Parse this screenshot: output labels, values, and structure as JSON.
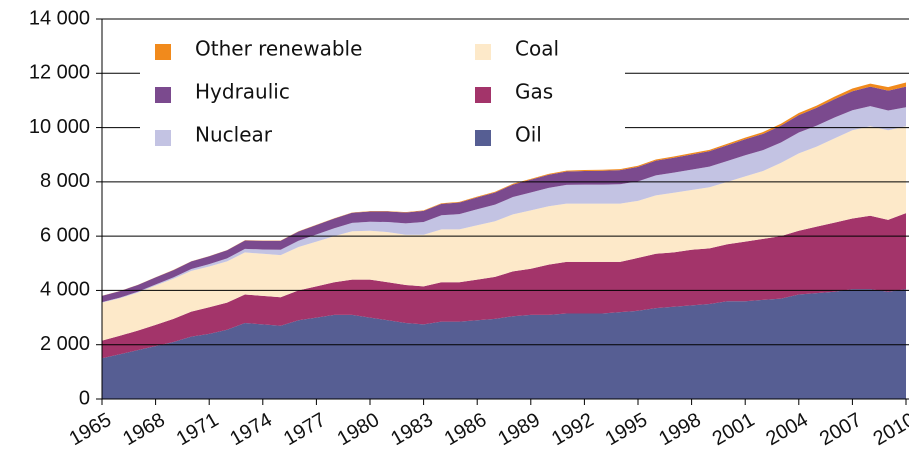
{
  "chart_data": {
    "type": "stacked_area",
    "x": [
      1965,
      1966,
      1967,
      1968,
      1969,
      1970,
      1971,
      1972,
      1973,
      1974,
      1975,
      1976,
      1977,
      1978,
      1979,
      1980,
      1981,
      1982,
      1983,
      1984,
      1985,
      1986,
      1987,
      1988,
      1989,
      1990,
      1991,
      1992,
      1993,
      1994,
      1995,
      1996,
      1997,
      1998,
      1999,
      2000,
      2001,
      2002,
      2003,
      2004,
      2005,
      2006,
      2007,
      2008,
      2009,
      2010
    ],
    "series": [
      {
        "name": "Oil",
        "color": "#565e93",
        "values": [
          1500,
          1650,
          1800,
          1950,
          2100,
          2300,
          2400,
          2550,
          2800,
          2750,
          2700,
          2900,
          3000,
          3100,
          3100,
          3000,
          2900,
          2800,
          2750,
          2850,
          2850,
          2900,
          2950,
          3050,
          3100,
          3100,
          3150,
          3150,
          3150,
          3200,
          3250,
          3350,
          3400,
          3450,
          3500,
          3600,
          3600,
          3650,
          3700,
          3850,
          3900,
          3950,
          4050,
          4050,
          3950,
          4050
        ]
      },
      {
        "name": "Gas",
        "color": "#a3346a",
        "values": [
          650,
          680,
          720,
          780,
          850,
          920,
          980,
          1000,
          1050,
          1050,
          1050,
          1100,
          1150,
          1200,
          1300,
          1400,
          1400,
          1400,
          1400,
          1450,
          1450,
          1500,
          1550,
          1650,
          1700,
          1850,
          1900,
          1900,
          1900,
          1850,
          1950,
          2000,
          2000,
          2050,
          2050,
          2100,
          2200,
          2250,
          2300,
          2350,
          2450,
          2550,
          2600,
          2700,
          2650,
          2800
        ]
      },
      {
        "name": "Coal",
        "color": "#fde9c9",
        "values": [
          1400,
          1380,
          1400,
          1450,
          1480,
          1500,
          1500,
          1520,
          1550,
          1550,
          1550,
          1600,
          1650,
          1700,
          1780,
          1800,
          1850,
          1850,
          1900,
          1950,
          1950,
          2000,
          2050,
          2100,
          2150,
          2150,
          2150,
          2150,
          2150,
          2150,
          2100,
          2150,
          2200,
          2200,
          2250,
          2300,
          2400,
          2500,
          2700,
          2850,
          2950,
          3100,
          3250,
          3300,
          3300,
          3200
        ]
      },
      {
        "name": "Nuclear",
        "color": "#c3c3e3",
        "values": [
          20,
          25,
          30,
          40,
          50,
          70,
          90,
          110,
          130,
          160,
          200,
          230,
          260,
          290,
          310,
          330,
          370,
          420,
          470,
          520,
          560,
          590,
          610,
          640,
          660,
          680,
          690,
          700,
          700,
          710,
          720,
          740,
          740,
          750,
          760,
          770,
          780,
          770,
          750,
          770,
          770,
          770,
          740,
          740,
          730,
          700
        ]
      },
      {
        "name": "Hydraulic",
        "color": "#7b4a8e",
        "values": [
          230,
          240,
          250,
          260,
          270,
          280,
          290,
          300,
          310,
          320,
          330,
          340,
          350,
          360,
          370,
          380,
          390,
          400,
          410,
          420,
          430,
          440,
          450,
          460,
          470,
          480,
          490,
          500,
          510,
          520,
          530,
          540,
          550,
          560,
          570,
          580,
          590,
          600,
          620,
          640,
          660,
          680,
          700,
          720,
          730,
          760
        ]
      },
      {
        "name": "Other renewable",
        "color": "#f18a1c",
        "values": [
          5,
          5,
          5,
          5,
          5,
          6,
          6,
          6,
          7,
          8,
          8,
          9,
          10,
          10,
          11,
          12,
          14,
          16,
          18,
          20,
          22,
          24,
          26,
          28,
          30,
          32,
          34,
          36,
          38,
          40,
          42,
          44,
          46,
          48,
          50,
          55,
          60,
          65,
          70,
          75,
          80,
          90,
          100,
          110,
          130,
          150
        ]
      }
    ],
    "xlim": [
      1965,
      2010
    ],
    "xticks": [
      1965,
      1968,
      1971,
      1974,
      1977,
      1980,
      1983,
      1986,
      1989,
      1992,
      1995,
      1998,
      2001,
      2004,
      2007,
      2010
    ],
    "ylim": [
      0,
      14000
    ],
    "yticks": [
      0,
      {
        "value": 2000,
        "label": "2 000"
      },
      {
        "value": 4000,
        "label": "4 000"
      },
      {
        "value": 6000,
        "label": "6 000"
      },
      {
        "value": 8000,
        "label": "8 000"
      },
      {
        "value": 10000,
        "label": "10 000"
      },
      {
        "value": 12000,
        "label": "12 000"
      },
      {
        "value": 14000,
        "label": "14 000"
      }
    ],
    "grid": true,
    "legend": "top"
  }
}
